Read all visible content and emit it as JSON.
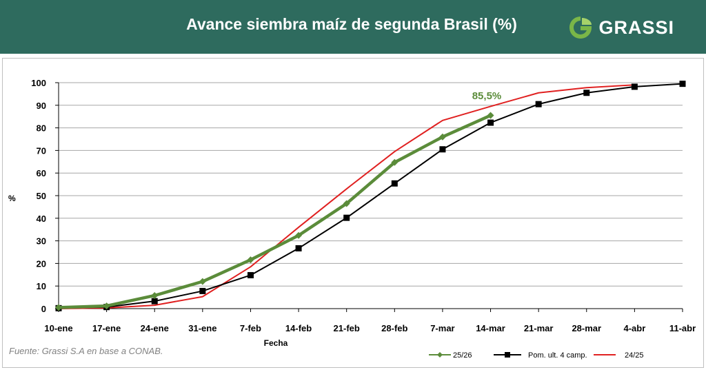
{
  "header": {
    "title": "Avance siembra maíz de segunda Brasil (%)",
    "brand": "GRASSI",
    "background_color": "#2e6b5e"
  },
  "source_note": "Fuente: Grassi S.A en base a CONAB.",
  "chart_data": {
    "type": "line",
    "title": "Avance siembra maíz de segunda Brasil (%)",
    "xlabel": "Fecha",
    "ylabel": "%",
    "ylim": [
      0,
      100
    ],
    "yticks": [
      0,
      10,
      20,
      30,
      40,
      50,
      60,
      70,
      80,
      90,
      100
    ],
    "categories": [
      "10-ene",
      "17-ene",
      "24-ene",
      "31-ene",
      "7-feb",
      "14-feb",
      "21-feb",
      "28-feb",
      "7-mar",
      "14-mar",
      "21-mar",
      "28-mar",
      "4-abr",
      "11-abr"
    ],
    "grid": true,
    "legend_position": "bottom-right",
    "annotation": {
      "text": "85,5%",
      "series": "25/26",
      "index": 9,
      "color": "#5b8c3a"
    },
    "series": [
      {
        "name": "25/26",
        "color": "#5b8c3a",
        "marker": "diamond",
        "values": [
          0.5,
          1.2,
          5.8,
          12.0,
          21.6,
          32.4,
          46.5,
          64.7,
          76.0,
          85.5,
          null,
          null,
          null,
          null
        ]
      },
      {
        "name": "Pom. ult. 4 camp.",
        "color": "#000000",
        "marker": "square",
        "values": [
          0.2,
          0.7,
          3.3,
          7.8,
          14.8,
          26.7,
          40.2,
          55.4,
          70.5,
          82.3,
          90.5,
          95.5,
          98.2,
          99.5
        ]
      },
      {
        "name": "24/25",
        "color": "#e02020",
        "marker": "none",
        "values": [
          0.0,
          0.3,
          1.5,
          5.3,
          18.5,
          36.0,
          53.0,
          69.5,
          83.3,
          89.5,
          95.5,
          97.8,
          99.0,
          null
        ]
      }
    ]
  }
}
